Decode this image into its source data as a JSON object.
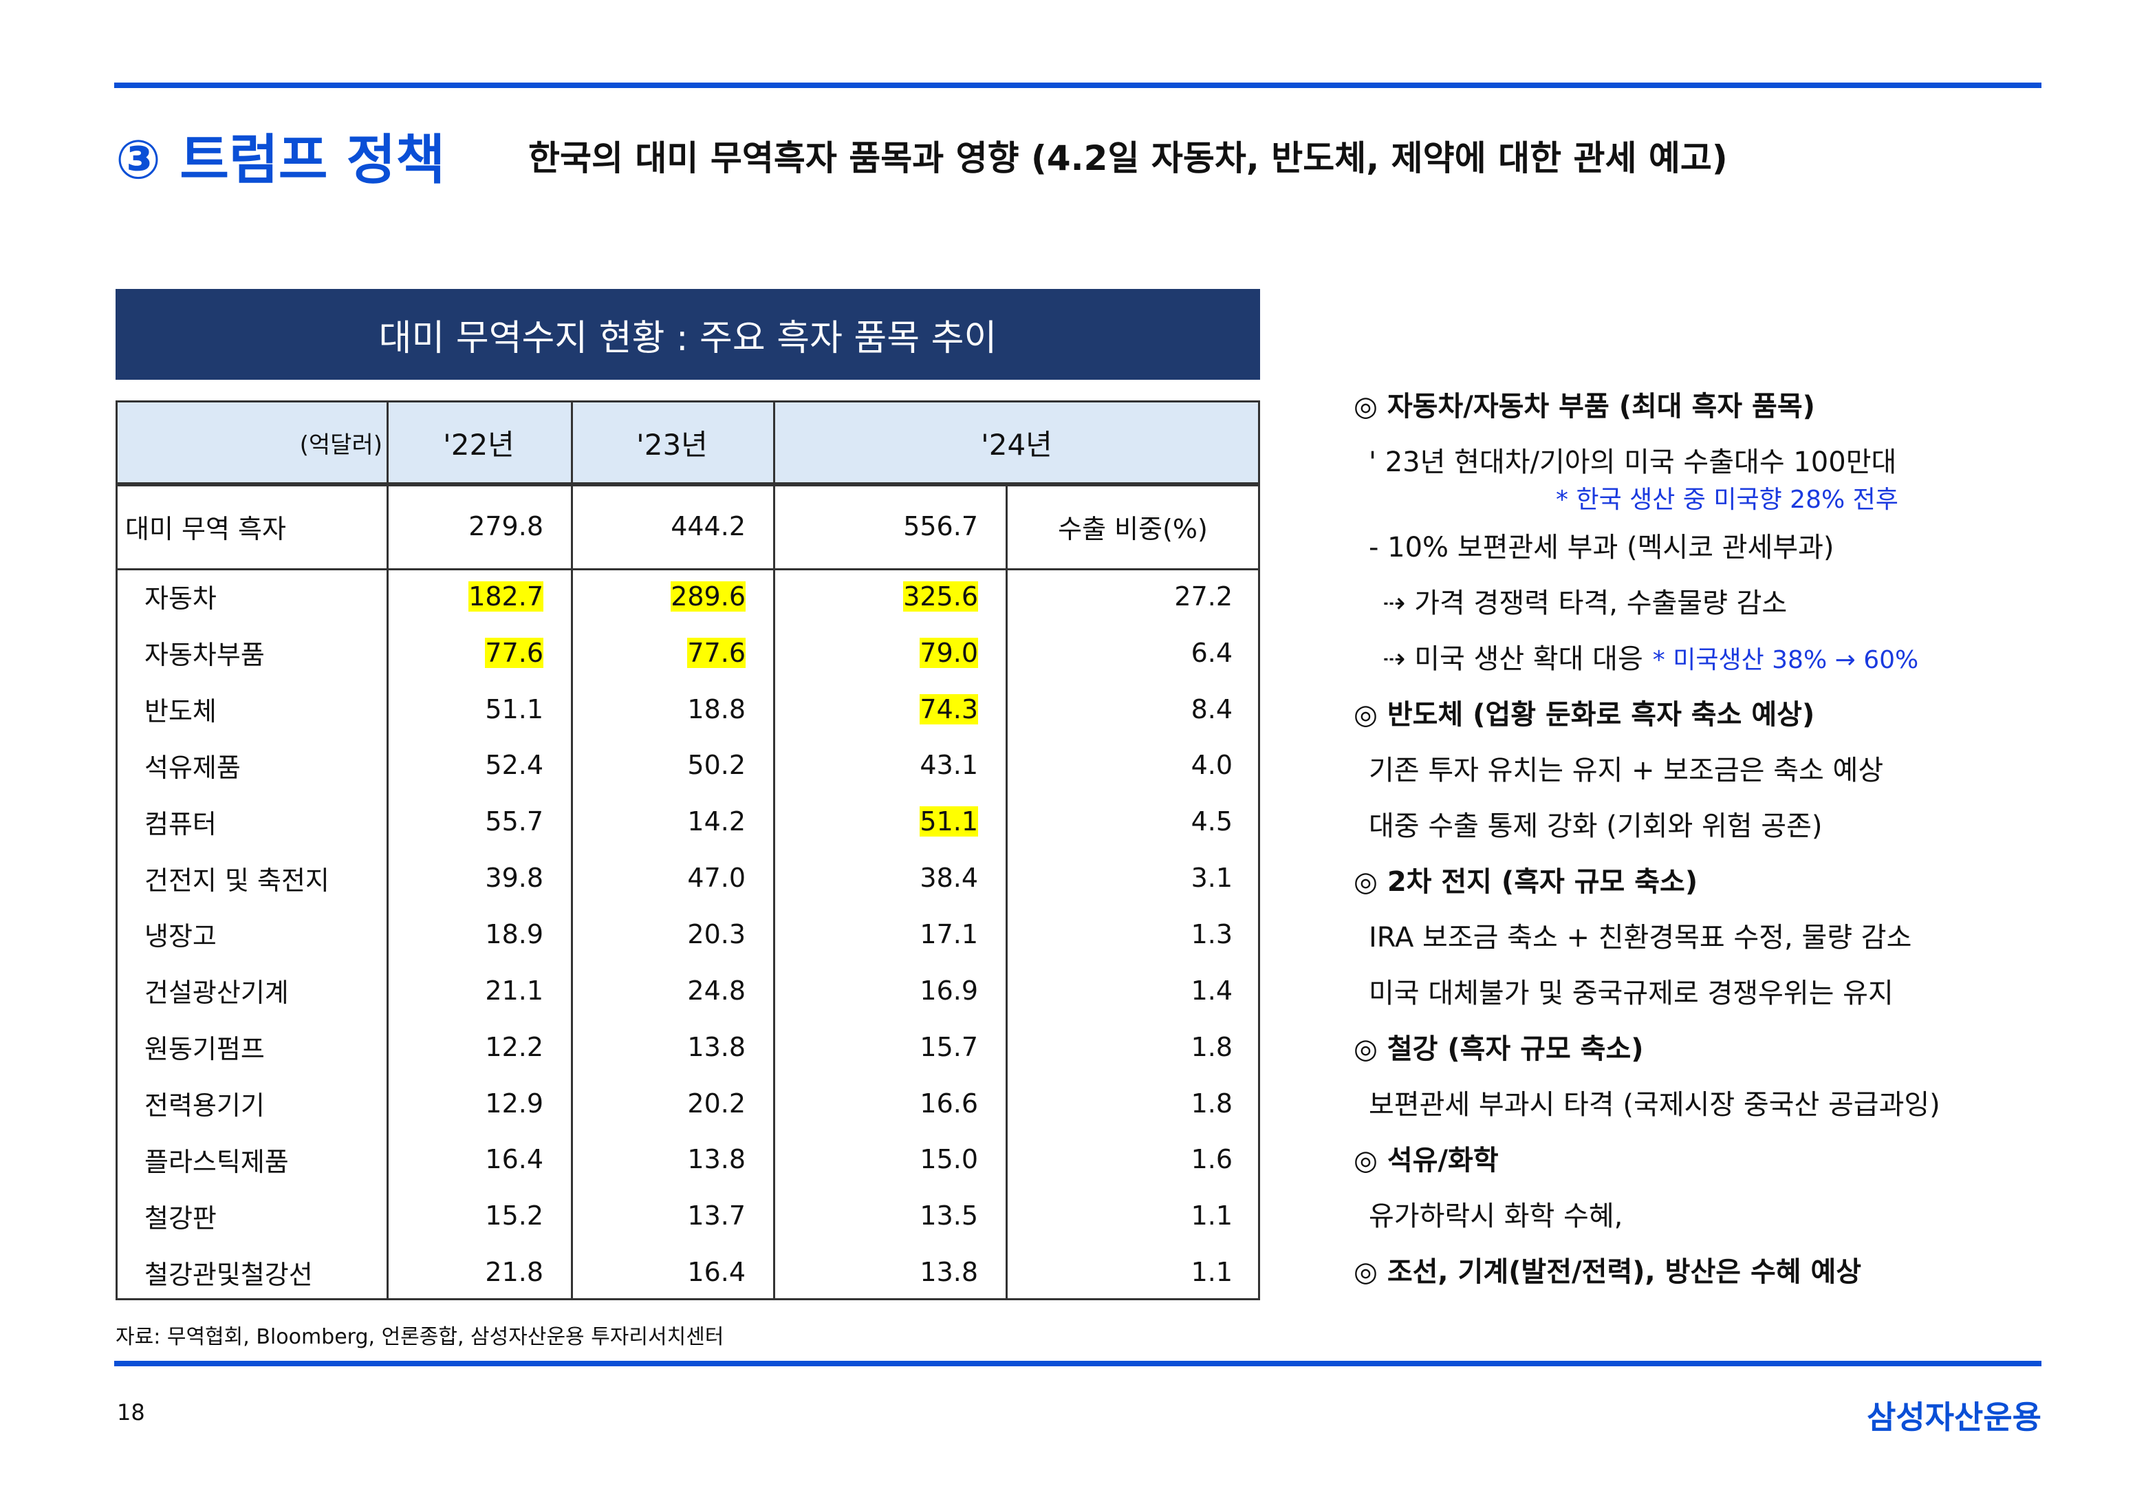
{
  "header": {
    "number_title": "③ 트럼프 정책",
    "subtitle": "한국의 대미 무역흑자 품목과 영향 (4.2일 자동차, 반도체, 제약에 대한  관세 예고)"
  },
  "table": {
    "title": "대미 무역수지 현황 : 주요 흑자 품목 추이",
    "unit": "(억달러)",
    "columns": [
      "'22년",
      "'23년",
      "'24년"
    ],
    "total": [
      "대미 무역 흑자",
      "279.8",
      "444.2",
      "556.7",
      "수출 비중(%)"
    ],
    "rows": [
      [
        "자동차",
        "182.7",
        "289.6",
        "325.6",
        "27.2"
      ],
      [
        "자동차부품",
        "77.6",
        "77.6",
        "79.0",
        "6.4"
      ],
      [
        "반도체",
        "51.1",
        "18.8",
        "74.3",
        "8.4"
      ],
      [
        "석유제품",
        "52.4",
        "50.2",
        "43.1",
        "4.0"
      ],
      [
        "컴퓨터",
        "55.7",
        "14.2",
        "51.1",
        "4.5"
      ],
      [
        "건전지 및 축전지",
        "39.8",
        "47.0",
        "38.4",
        "3.1"
      ],
      [
        "냉장고",
        "18.9",
        "20.3",
        "17.1",
        "1.3"
      ],
      [
        "건설광산기계",
        "21.1",
        "24.8",
        "16.9",
        "1.4"
      ],
      [
        "원동기펌프",
        "12.2",
        "13.8",
        "15.7",
        "1.8"
      ],
      [
        "전력용기기",
        "12.9",
        "20.2",
        "16.6",
        "1.8"
      ],
      [
        "플라스틱제품",
        "16.4",
        "13.8",
        "15.0",
        "1.6"
      ],
      [
        "철강판",
        "15.2",
        "13.7",
        "13.5",
        "1.1"
      ],
      [
        "철강관및철강선",
        "21.8",
        "16.4",
        "13.8",
        "1.1"
      ]
    ],
    "highlights": [
      [
        0,
        1
      ],
      [
        0,
        2
      ],
      [
        0,
        3
      ],
      [
        1,
        1
      ],
      [
        1,
        2
      ],
      [
        1,
        3
      ],
      [
        2,
        3
      ],
      [
        4,
        3
      ]
    ],
    "highlight_color": "#ffff00"
  },
  "notes": [
    {
      "level": "heading",
      "text": "◎ 자동차/자동차 부품 (최대 흑자 품목)"
    },
    {
      "level": "body",
      "text": "' 23년 현대차/기아의 미국 수출대수 100만대"
    },
    {
      "level": "note",
      "text": "* 한국 생산 중 미국향 28% 전후"
    },
    {
      "level": "body",
      "text": "- 10% 보편관세 부과 (멕시코 관세부과)"
    },
    {
      "level": "sub",
      "text": "⇢ 가격 경쟁력 타격, 수출물량 감소"
    },
    {
      "level": "sub",
      "text": "⇢ 미국 생산 확대 대응",
      "note": "* 미국생산 38% → 60%"
    },
    {
      "level": "heading",
      "text": "◎ 반도체 (업황 둔화로 흑자 축소 예상)"
    },
    {
      "level": "body",
      "text": "기존 투자 유치는 유지 + 보조금은 축소 예상"
    },
    {
      "level": "body",
      "text": "대중 수출 통제 강화 (기회와 위험 공존)"
    },
    {
      "level": "heading",
      "text": "◎ 2차 전지 (흑자 규모 축소)"
    },
    {
      "level": "body",
      "text": "IRA 보조금 축소 + 친환경목표 수정, 물량 감소"
    },
    {
      "level": "body",
      "text": "미국 대체불가 및 중국규제로 경쟁우위는 유지"
    },
    {
      "level": "heading",
      "text": "◎ 철강 (흑자 규모 축소)"
    },
    {
      "level": "body",
      "text": "보편관세 부과시 타격 (국제시장 중국산 공급과잉)"
    },
    {
      "level": "heading",
      "text": "◎ 석유/화학"
    },
    {
      "level": "body",
      "text": "유가하락시 화학 수혜,"
    },
    {
      "level": "heading",
      "text": "◎ 조선, 기계(발전/전력), 방산은 수혜 예상"
    }
  ],
  "footer": {
    "source": "자료: 무역협회, Bloomberg, 언론종합, 삼성자산운용 투자리서치센터",
    "page": "18",
    "brand": "삼성자산운용"
  }
}
